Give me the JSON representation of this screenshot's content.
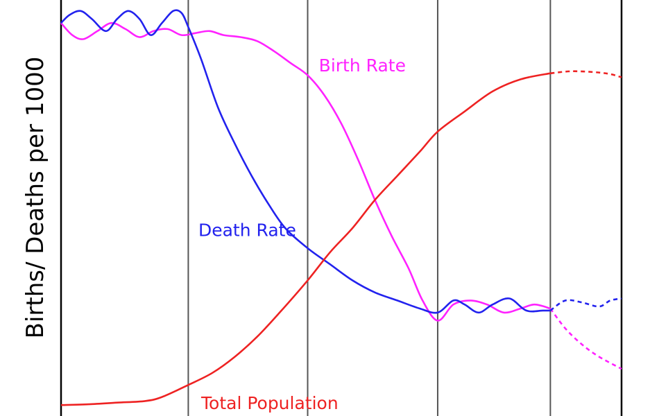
{
  "chart_data": {
    "type": "line",
    "ylabel": "Births/ Deaths per 1000",
    "x_range": [
      0,
      1
    ],
    "y_range": [
      0,
      1
    ],
    "stage_boundaries": [
      0.0,
      0.227,
      0.44,
      0.672,
      0.873,
      1.0
    ],
    "grid": false,
    "series": [
      {
        "name": "Birth Rate",
        "color": "#ff22ff",
        "points": [
          [
            0.0,
            0.96
          ],
          [
            0.02,
            0.93
          ],
          [
            0.04,
            0.92
          ],
          [
            0.065,
            0.94
          ],
          [
            0.09,
            0.96
          ],
          [
            0.115,
            0.945
          ],
          [
            0.14,
            0.925
          ],
          [
            0.165,
            0.94
          ],
          [
            0.19,
            0.945
          ],
          [
            0.215,
            0.93
          ],
          [
            0.24,
            0.935
          ],
          [
            0.265,
            0.94
          ],
          [
            0.29,
            0.93
          ],
          [
            0.32,
            0.925
          ],
          [
            0.35,
            0.915
          ],
          [
            0.38,
            0.89
          ],
          [
            0.41,
            0.86
          ],
          [
            0.44,
            0.83
          ],
          [
            0.47,
            0.78
          ],
          [
            0.5,
            0.71
          ],
          [
            0.53,
            0.62
          ],
          [
            0.56,
            0.52
          ],
          [
            0.59,
            0.43
          ],
          [
            0.62,
            0.35
          ],
          [
            0.645,
            0.27
          ],
          [
            0.672,
            0.22
          ],
          [
            0.7,
            0.26
          ],
          [
            0.73,
            0.27
          ],
          [
            0.76,
            0.26
          ],
          [
            0.79,
            0.24
          ],
          [
            0.82,
            0.25
          ],
          [
            0.845,
            0.26
          ],
          [
            0.873,
            0.25
          ]
        ],
        "projection": [
          [
            0.873,
            0.25
          ],
          [
            0.9,
            0.2
          ],
          [
            0.93,
            0.16
          ],
          [
            0.96,
            0.13
          ],
          [
            1.0,
            0.1
          ]
        ]
      },
      {
        "name": "Death Rate",
        "color": "#2222ee",
        "points": [
          [
            0.0,
            0.96
          ],
          [
            0.015,
            0.98
          ],
          [
            0.035,
            0.99
          ],
          [
            0.055,
            0.97
          ],
          [
            0.08,
            0.94
          ],
          [
            0.1,
            0.97
          ],
          [
            0.12,
            0.99
          ],
          [
            0.14,
            0.97
          ],
          [
            0.16,
            0.93
          ],
          [
            0.18,
            0.96
          ],
          [
            0.2,
            0.99
          ],
          [
            0.215,
            0.985
          ],
          [
            0.227,
            0.95
          ],
          [
            0.25,
            0.87
          ],
          [
            0.28,
            0.75
          ],
          [
            0.31,
            0.66
          ],
          [
            0.34,
            0.58
          ],
          [
            0.37,
            0.51
          ],
          [
            0.4,
            0.45
          ],
          [
            0.44,
            0.4
          ],
          [
            0.48,
            0.36
          ],
          [
            0.52,
            0.32
          ],
          [
            0.56,
            0.29
          ],
          [
            0.6,
            0.27
          ],
          [
            0.64,
            0.25
          ],
          [
            0.672,
            0.24
          ],
          [
            0.7,
            0.27
          ],
          [
            0.72,
            0.26
          ],
          [
            0.745,
            0.24
          ],
          [
            0.77,
            0.26
          ],
          [
            0.8,
            0.275
          ],
          [
            0.83,
            0.245
          ],
          [
            0.86,
            0.245
          ],
          [
            0.873,
            0.245
          ]
        ],
        "projection": [
          [
            0.873,
            0.245
          ],
          [
            0.9,
            0.27
          ],
          [
            0.93,
            0.265
          ],
          [
            0.96,
            0.255
          ],
          [
            0.98,
            0.27
          ],
          [
            1.0,
            0.275
          ]
        ]
      },
      {
        "name": "Total Population",
        "color": "#ee2222",
        "points": [
          [
            0.0,
            0.01
          ],
          [
            0.05,
            0.012
          ],
          [
            0.1,
            0.016
          ],
          [
            0.15,
            0.02
          ],
          [
            0.18,
            0.03
          ],
          [
            0.227,
            0.06
          ],
          [
            0.27,
            0.09
          ],
          [
            0.31,
            0.13
          ],
          [
            0.35,
            0.18
          ],
          [
            0.39,
            0.24
          ],
          [
            0.44,
            0.32
          ],
          [
            0.48,
            0.39
          ],
          [
            0.52,
            0.45
          ],
          [
            0.56,
            0.52
          ],
          [
            0.6,
            0.58
          ],
          [
            0.64,
            0.64
          ],
          [
            0.672,
            0.69
          ],
          [
            0.72,
            0.74
          ],
          [
            0.77,
            0.79
          ],
          [
            0.82,
            0.82
          ],
          [
            0.873,
            0.835
          ]
        ],
        "projection": [
          [
            0.873,
            0.835
          ],
          [
            0.91,
            0.84
          ],
          [
            0.95,
            0.838
          ],
          [
            0.98,
            0.833
          ],
          [
            1.0,
            0.825
          ]
        ]
      }
    ],
    "annotations": [
      {
        "series": "Birth Rate",
        "text": "Birth Rate",
        "x": 0.46,
        "y": 0.84
      },
      {
        "series": "Death Rate",
        "text": "Death Rate",
        "x": 0.245,
        "y": 0.43
      },
      {
        "series": "Total Population",
        "text": "Total Population",
        "x": 0.25,
        "y": 0.0
      }
    ]
  }
}
